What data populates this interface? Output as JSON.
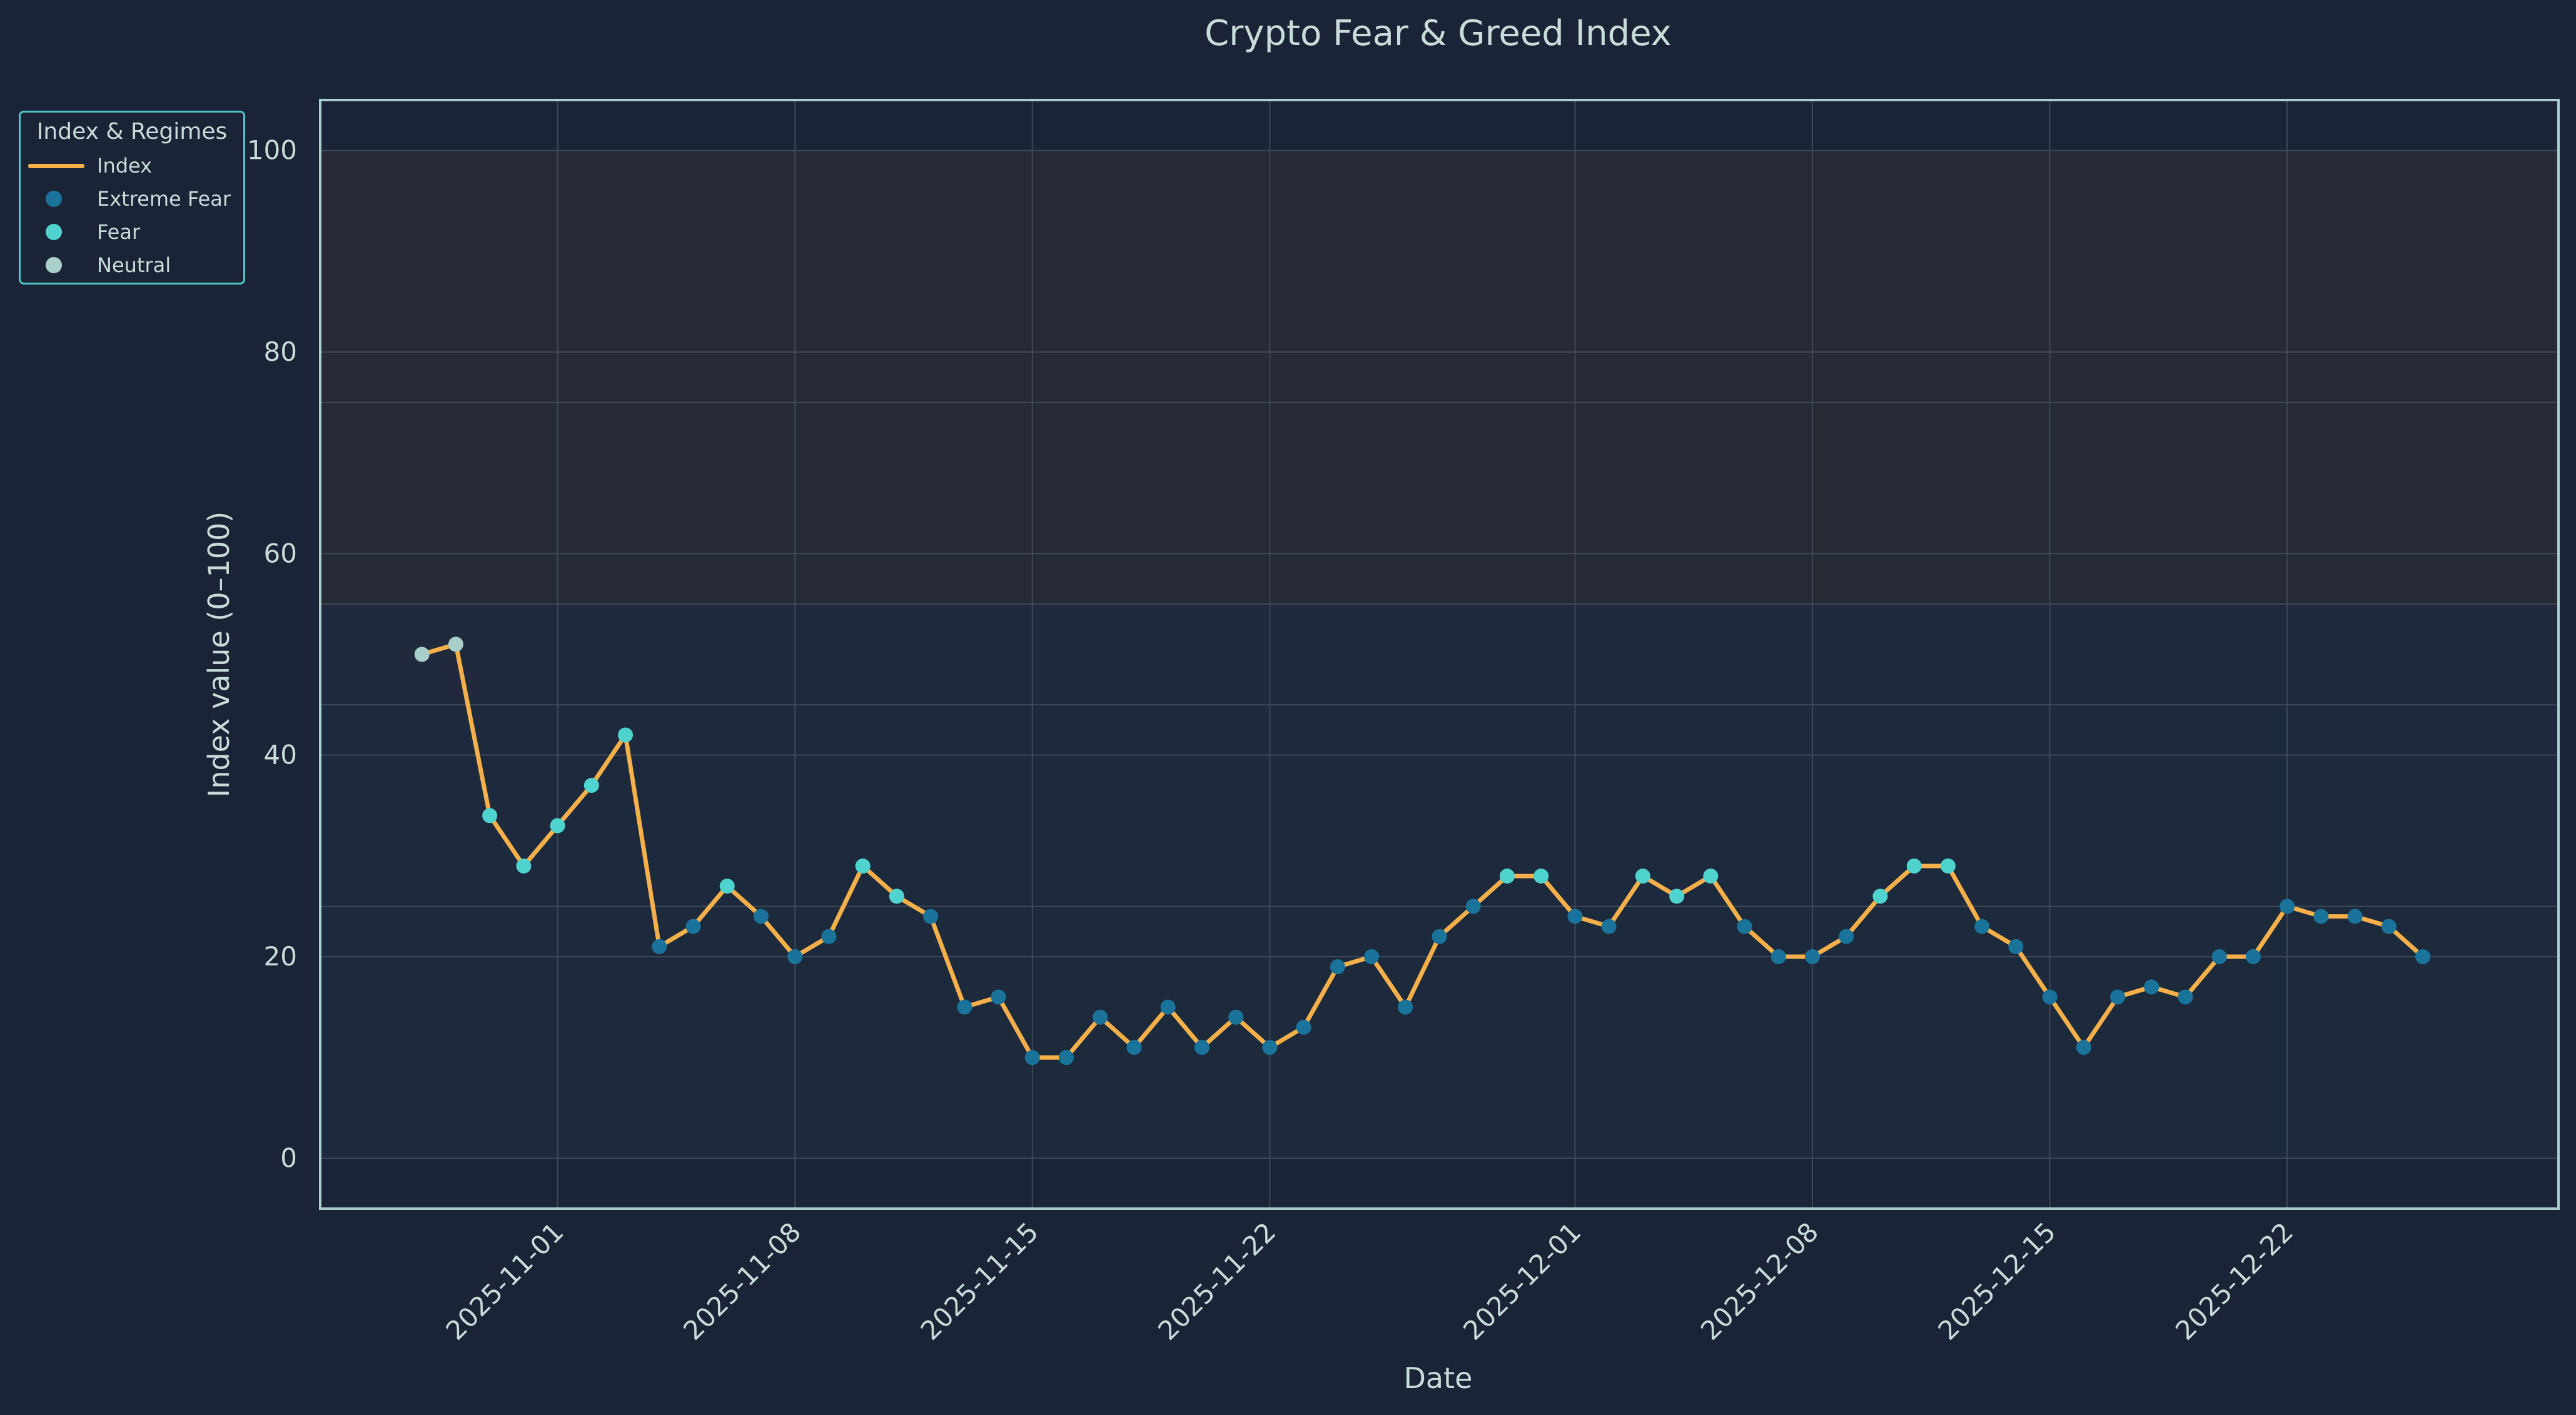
{
  "chart_data": {
    "type": "line",
    "title": "Crypto Fear & Greed Index",
    "xlabel": "Date",
    "ylabel": "Index value (0–100)",
    "ylim": [
      -5,
      105
    ],
    "yticks": [
      0,
      20,
      40,
      60,
      80,
      100
    ],
    "xlim": [
      "2025-10-25",
      "2025-12-30"
    ],
    "xticks": [
      "2025-11-01",
      "2025-11-08",
      "2025-11-15",
      "2025-11-22",
      "2025-12-01",
      "2025-12-08",
      "2025-12-15",
      "2025-12-22"
    ],
    "grid": true,
    "legend": {
      "title": "Index & Regimes",
      "placement": "upper-left outside",
      "entries": [
        {
          "label": "Index",
          "kind": "line",
          "color": "#f5b04a"
        },
        {
          "label": "Extreme Fear",
          "kind": "dot",
          "color": "#1a739b"
        },
        {
          "label": "Fear",
          "kind": "dot",
          "color": "#4ed3cf"
        },
        {
          "label": "Neutral",
          "kind": "dot",
          "color": "#a9cfcb"
        }
      ]
    },
    "regime_bands": [
      {
        "from": 0,
        "to": 25,
        "color": "#1c2a3c"
      },
      {
        "from": 25,
        "to": 45,
        "color": "#1d2a3d"
      },
      {
        "from": 45,
        "to": 55,
        "color": "#212a3c"
      },
      {
        "from": 55,
        "to": 75,
        "color": "#262a35"
      },
      {
        "from": 75,
        "to": 100,
        "color": "#272a34"
      }
    ],
    "series": [
      {
        "name": "Index",
        "color": "#f5b04a",
        "x": [
          "2025-10-28",
          "2025-10-29",
          "2025-10-30",
          "2025-10-31",
          "2025-11-01",
          "2025-11-02",
          "2025-11-03",
          "2025-11-04",
          "2025-11-05",
          "2025-11-06",
          "2025-11-07",
          "2025-11-08",
          "2025-11-09",
          "2025-11-10",
          "2025-11-11",
          "2025-11-12",
          "2025-11-13",
          "2025-11-14",
          "2025-11-15",
          "2025-11-16",
          "2025-11-17",
          "2025-11-18",
          "2025-11-19",
          "2025-11-20",
          "2025-11-21",
          "2025-11-22",
          "2025-11-23",
          "2025-11-24",
          "2025-11-25",
          "2025-11-26",
          "2025-11-27",
          "2025-11-28",
          "2025-11-29",
          "2025-11-30",
          "2025-12-01",
          "2025-12-02",
          "2025-12-03",
          "2025-12-04",
          "2025-12-05",
          "2025-12-06",
          "2025-12-07",
          "2025-12-08",
          "2025-12-09",
          "2025-12-10",
          "2025-12-11",
          "2025-12-12",
          "2025-12-13",
          "2025-12-14",
          "2025-12-15",
          "2025-12-16",
          "2025-12-17",
          "2025-12-18",
          "2025-12-19",
          "2025-12-20",
          "2025-12-21",
          "2025-12-22",
          "2025-12-23",
          "2025-12-24",
          "2025-12-25",
          "2025-12-26",
          "2025-12-27"
        ],
        "values": [
          50,
          51,
          34,
          29,
          33,
          37,
          42,
          21,
          23,
          27,
          24,
          20,
          22,
          29,
          26,
          24,
          15,
          16,
          10,
          10,
          14,
          11,
          15,
          11,
          14,
          11,
          13,
          19,
          20,
          15,
          22,
          25,
          28,
          28,
          24,
          23,
          28,
          26,
          28,
          23,
          20,
          20,
          22,
          26,
          29,
          29,
          23,
          21,
          16,
          11,
          16,
          17,
          16,
          20,
          20,
          25,
          24,
          24,
          23,
          20,
          null
        ],
        "regime": [
          "Neutral",
          "Neutral",
          "Fear",
          "Fear",
          "Fear",
          "Fear",
          "Fear",
          "Extreme Fear",
          "Extreme Fear",
          "Fear",
          "Extreme Fear",
          "Extreme Fear",
          "Extreme Fear",
          "Fear",
          "Fear",
          "Extreme Fear",
          "Extreme Fear",
          "Extreme Fear",
          "Extreme Fear",
          "Extreme Fear",
          "Extreme Fear",
          "Extreme Fear",
          "Extreme Fear",
          "Extreme Fear",
          "Extreme Fear",
          "Extreme Fear",
          "Extreme Fear",
          "Extreme Fear",
          "Extreme Fear",
          "Extreme Fear",
          "Extreme Fear",
          "Extreme Fear",
          "Fear",
          "Fear",
          "Extreme Fear",
          "Extreme Fear",
          "Fear",
          "Fear",
          "Fear",
          "Extreme Fear",
          "Extreme Fear",
          "Extreme Fear",
          "Extreme Fear",
          "Fear",
          "Fear",
          "Fear",
          "Extreme Fear",
          "Extreme Fear",
          "Extreme Fear",
          "Extreme Fear",
          "Extreme Fear",
          "Extreme Fear",
          "Extreme Fear",
          "Extreme Fear",
          "Extreme Fear",
          "Extreme Fear",
          "Extreme Fear",
          "Extreme Fear",
          "Extreme Fear",
          "Extreme Fear",
          null
        ]
      }
    ]
  }
}
